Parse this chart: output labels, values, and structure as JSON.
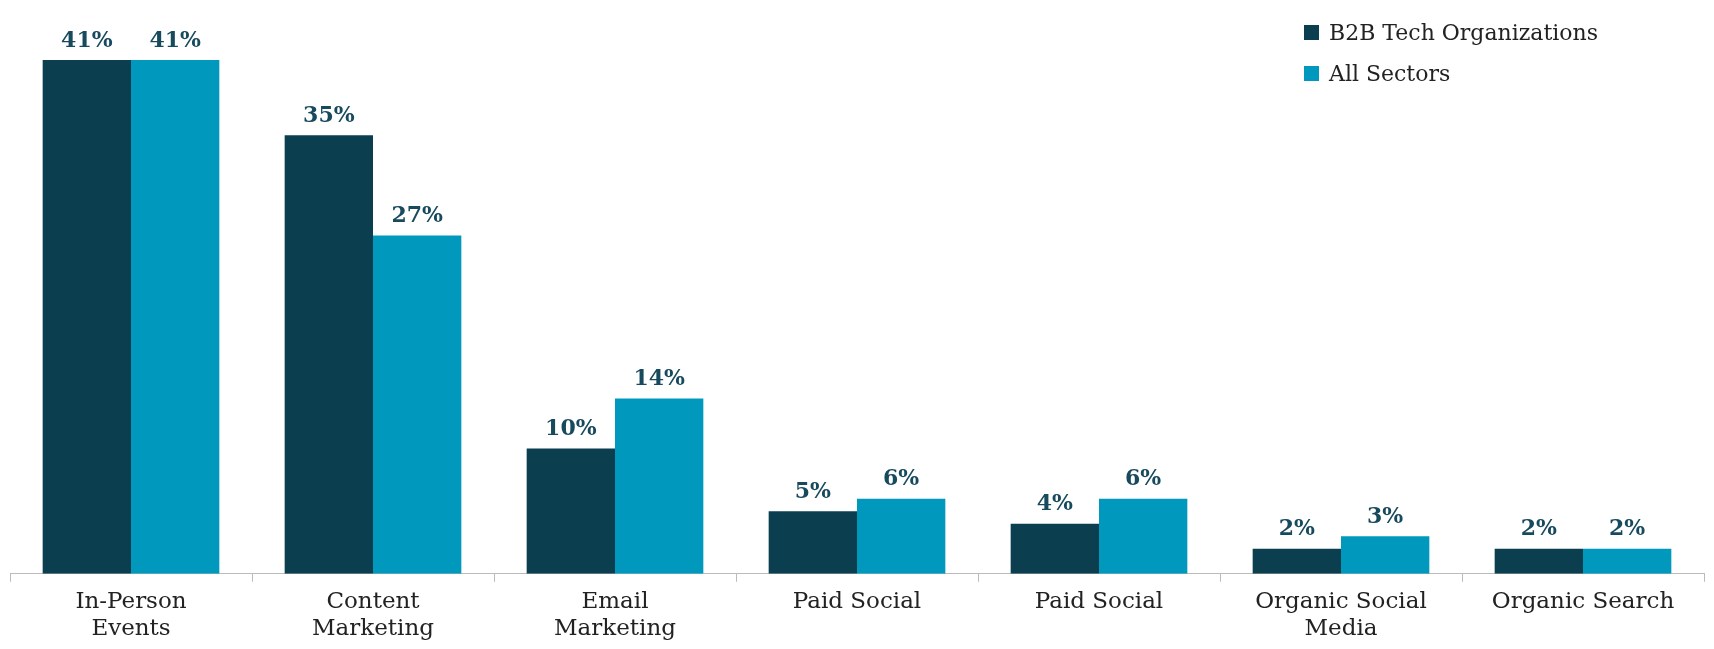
{
  "chart_data": {
    "type": "bar",
    "categories": [
      "In-Person Events",
      "Content Marketing",
      "Email Marketing",
      "Paid Social",
      "Paid Social",
      "Organic Social Media",
      "Organic Search"
    ],
    "series": [
      {
        "name": "B2B Tech Organizations",
        "color": "#0b3f50",
        "values": [
          41,
          35,
          10,
          5,
          4,
          2,
          2
        ],
        "value_labels": [
          "41%",
          "35%",
          "10%",
          "5%",
          "4%",
          "2%",
          "2%"
        ]
      },
      {
        "name": "All Sectors",
        "color": "#0099bd",
        "values": [
          41,
          27,
          14,
          6,
          6,
          3,
          2
        ],
        "value_labels": [
          "41%",
          "27%",
          "14%",
          "6%",
          "6%",
          "3%",
          "2%"
        ]
      }
    ],
    "grid": false,
    "legend": "top right"
  }
}
